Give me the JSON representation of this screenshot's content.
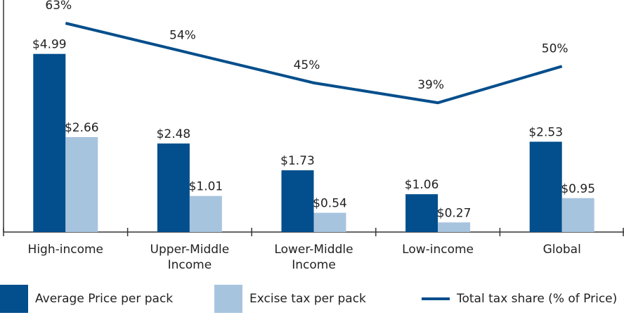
{
  "chart_data": {
    "type": "bar",
    "categories": [
      "High-income",
      "Upper-Middle Income",
      "Lower-Middle Income",
      "Low-income",
      "Global"
    ],
    "series": [
      {
        "name": "Average Price per pack",
        "color": "#034e8c",
        "values": [
          4.99,
          2.48,
          1.73,
          1.06,
          2.53
        ],
        "value_labels": [
          "$4.99",
          "$2.48",
          "$1.73",
          "$1.06",
          "$2.53"
        ]
      },
      {
        "name": "Excise tax per pack",
        "color": "#a7c4df",
        "values": [
          2.66,
          1.01,
          0.54,
          0.27,
          0.95
        ],
        "value_labels": [
          "$2.66",
          "$1.01",
          "$0.54",
          "$0.27",
          "$0.95"
        ]
      },
      {
        "name": "Total tax share (% of Price)",
        "type": "line",
        "axis": "y2",
        "color": "#034e8c",
        "values": [
          63,
          54,
          45,
          39,
          50
        ],
        "value_labels": [
          "63%",
          "54%",
          "45%",
          "39%",
          "50%"
        ]
      }
    ],
    "ylim": [
      0,
      6.5
    ],
    "y2lim": [
      0,
      70
    ]
  }
}
